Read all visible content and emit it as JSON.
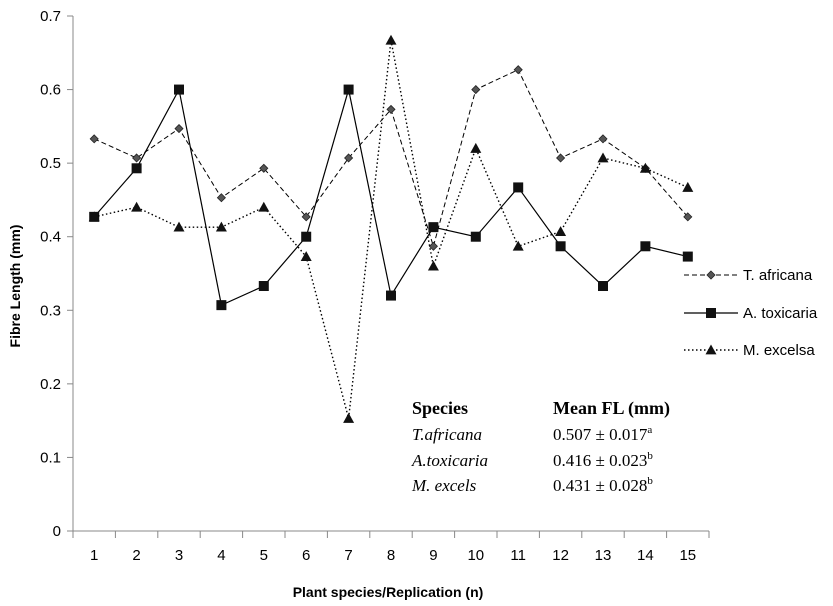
{
  "chart_data": {
    "type": "line",
    "xlabel": "Plant species/Replication (n)",
    "ylabel": "Fibre Length (mm)",
    "ylim": [
      0,
      0.7
    ],
    "yticks": [
      "0",
      "0.1",
      "0.2",
      "0.3",
      "0.4",
      "0.5",
      "0.6",
      "0.7"
    ],
    "categories": [
      "1",
      "2",
      "3",
      "4",
      "5",
      "6",
      "7",
      "8",
      "9",
      "10",
      "11",
      "12",
      "13",
      "14",
      "15"
    ],
    "grid": false,
    "legend_position": "right",
    "series": [
      {
        "name": "T. africana",
        "line_style": "dashed",
        "marker": "diamond",
        "color": "#000000",
        "values": [
          0.533,
          0.507,
          0.547,
          0.453,
          0.493,
          0.427,
          0.507,
          0.573,
          0.387,
          0.6,
          0.627,
          0.507,
          0.533,
          0.493,
          0.427
        ]
      },
      {
        "name": "A. toxicaria",
        "line_style": "solid",
        "marker": "square",
        "color": "#000000",
        "values": [
          0.427,
          0.493,
          0.6,
          0.307,
          0.333,
          0.4,
          0.6,
          0.32,
          0.413,
          0.4,
          0.467,
          0.387,
          0.333,
          0.387,
          0.373
        ]
      },
      {
        "name": "M. excelsa",
        "line_style": "dotted",
        "marker": "triangle",
        "color": "#000000",
        "values": [
          0.427,
          0.44,
          0.413,
          0.413,
          0.44,
          0.373,
          0.153,
          0.667,
          0.36,
          0.52,
          0.387,
          0.407,
          0.507,
          0.493,
          0.467
        ]
      }
    ],
    "annotation_table": {
      "headers": [
        "Species",
        "Mean FL (mm)"
      ],
      "rows": [
        {
          "species": "T.africana",
          "mean": "0.507 ± 0.017",
          "sup": "a"
        },
        {
          "species": "A.toxicaria",
          "mean": "0.416 ± 0.023",
          "sup": "b"
        },
        {
          "species": "M. excels",
          "mean": "0.431 ± 0.028",
          "sup": "b"
        }
      ]
    }
  }
}
